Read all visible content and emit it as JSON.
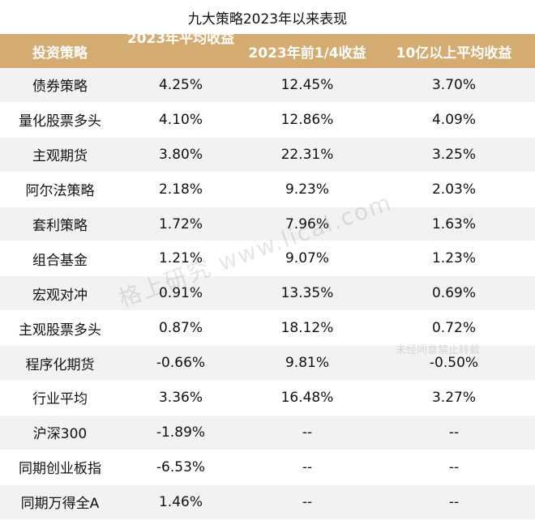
{
  "title": "九大策略2023年以来表现",
  "headers": [
    "投资策略",
    "2023年平均收益",
    "2023年前1/4收益",
    "10亿以上平均收益"
  ],
  "rows": [
    [
      "债券策略",
      "4.25%",
      "12.45%",
      "3.70%"
    ],
    [
      "量化股票多头",
      "4.10%",
      "12.86%",
      "4.09%"
    ],
    [
      "主观期货",
      "3.80%",
      "22.31%",
      "3.25%"
    ],
    [
      "阿尔法策略",
      "2.18%",
      "9.23%",
      "2.03%"
    ],
    [
      "套利策略",
      "1.72%",
      "7.96%",
      "1.63%"
    ],
    [
      "组合基金",
      "1.21%",
      "9.07%",
      "1.23%"
    ],
    [
      "宏观对冲",
      "0.91%",
      "13.35%",
      "0.69%"
    ],
    [
      "主观股票多头",
      "0.87%",
      "18.12%",
      "0.72%"
    ],
    [
      "程序化期货",
      "-0.66%",
      "9.81%",
      "-0.50%"
    ],
    [
      "行业平均",
      "3.36%",
      "16.48%",
      "3.27%"
    ],
    [
      "沪深300",
      "-1.89%",
      "--",
      "--"
    ],
    [
      "同期创业板指",
      "-6.53%",
      "--",
      "--"
    ],
    [
      "同期万得全A",
      "1.46%",
      "--",
      "--"
    ]
  ],
  "watermark": {
    "main": "格上研究 www.licai.com",
    "sub": "未经同意禁止转载"
  },
  "colors": {
    "header_bg": "#d4ac71",
    "header_text": "#ffffff",
    "row_stripe": "#f2f2f2"
  }
}
